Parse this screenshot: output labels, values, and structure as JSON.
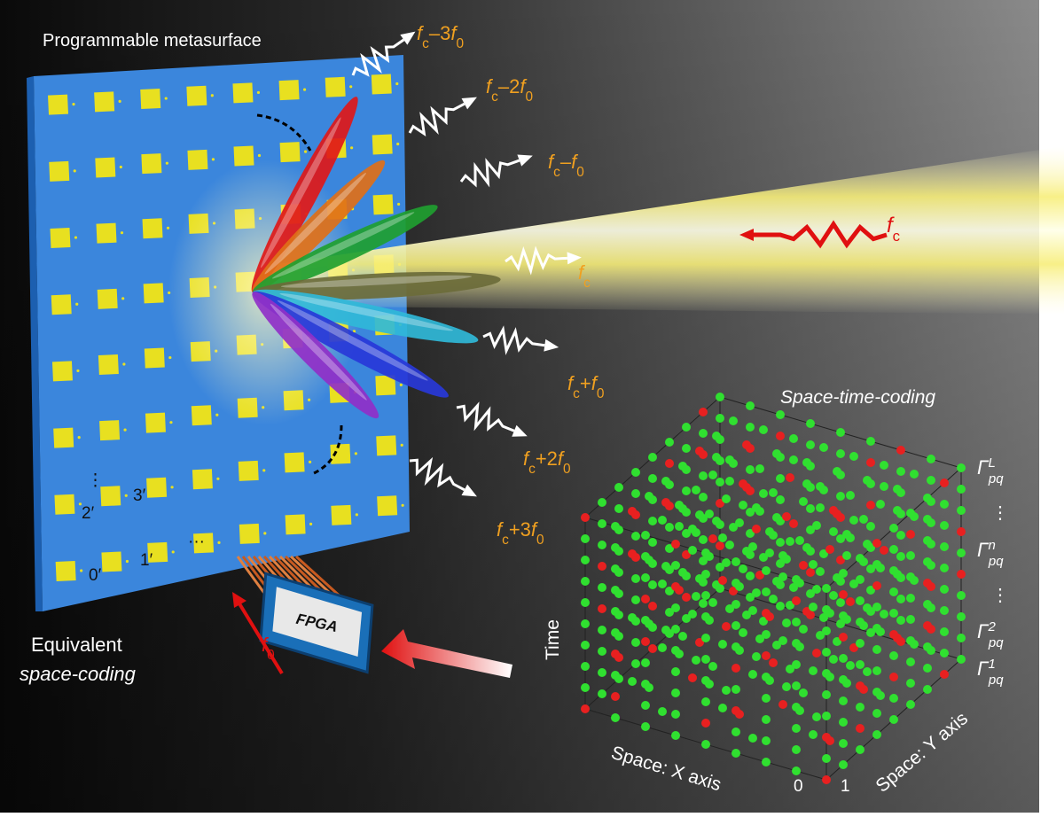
{
  "panel_title": "Programmable metasurface",
  "harmonics": [
    [
      "f",
      "c",
      "–3",
      "f",
      "0"
    ],
    [
      "f",
      "c",
      "–2",
      "f",
      "0"
    ],
    [
      "f",
      "c",
      "–",
      "f",
      "0"
    ],
    [
      "f",
      "c"
    ],
    [
      "f",
      "c",
      "+",
      "f",
      "0"
    ],
    [
      "f",
      "c",
      "+2",
      "f",
      "0"
    ],
    [
      "f",
      "c",
      "+3",
      "f",
      "0"
    ]
  ],
  "incident_label": [
    "f",
    "c"
  ],
  "coding_title": "Space-time-coding",
  "gamma_labels": [
    [
      "Γ",
      "L",
      "pq"
    ],
    [
      "⋮"
    ],
    [
      "Γ",
      "n",
      "pq"
    ],
    [
      "⋮"
    ],
    [
      "Γ",
      "2",
      "pq"
    ],
    [
      "Γ",
      "1",
      "pq"
    ]
  ],
  "axes": {
    "time": "Time",
    "x": "Space: X axis",
    "y": "Space: Y axis",
    "x_index": "0",
    "y_index": "1"
  },
  "fpga": "FPGA",
  "clock_label": [
    "f",
    "0"
  ],
  "equivalent": {
    "line1": "Equivalent",
    "line2": "space-coding"
  },
  "element_labels": [
    "⋮",
    "2′",
    "3′",
    "0′",
    "1′",
    "···"
  ]
}
